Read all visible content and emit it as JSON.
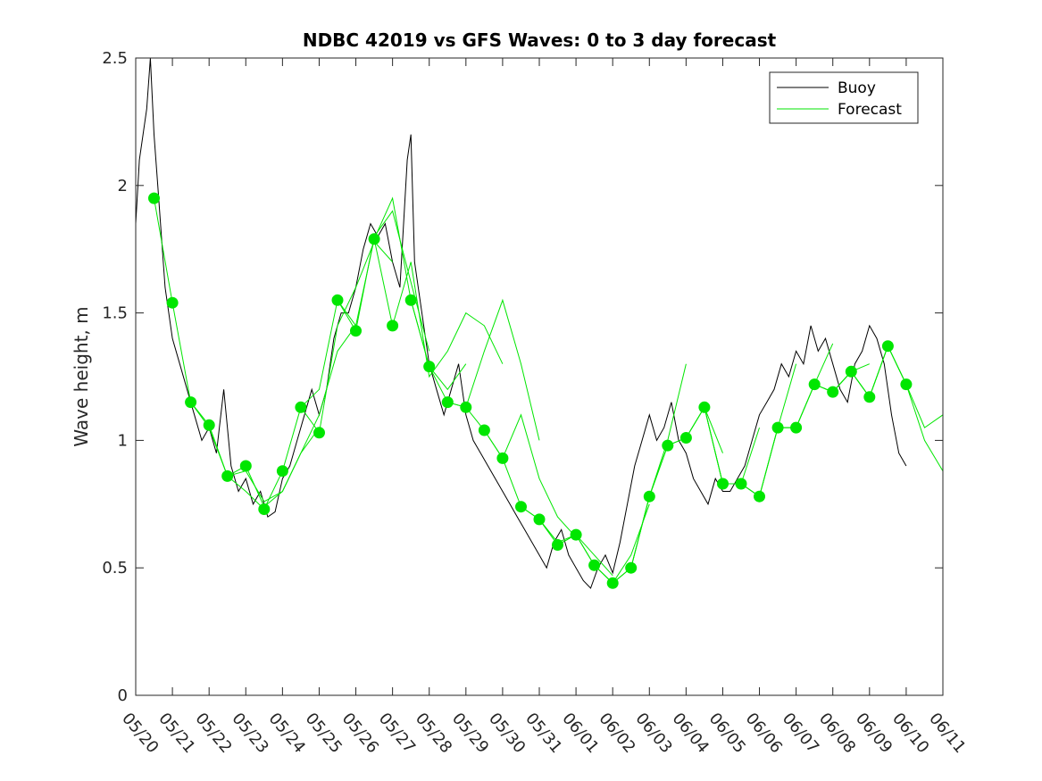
{
  "chart_data": {
    "type": "line",
    "title": "NDBC 42019 vs GFS Waves: 0 to 3 day forecast",
    "ylabel": "Wave height, m",
    "xlabel": "",
    "x_range_days": [
      0,
      22
    ],
    "ylim": [
      0,
      2.5
    ],
    "yticks": [
      "0",
      "0.5",
      "1",
      "1.5",
      "2",
      "2.5"
    ],
    "xtick_labels": [
      "05/20",
      "05/21",
      "05/22",
      "05/23",
      "05/24",
      "05/25",
      "05/26",
      "05/27",
      "05/28",
      "05/29",
      "05/30",
      "05/31",
      "06/01",
      "06/02",
      "06/03",
      "06/04",
      "06/05",
      "06/06",
      "06/07",
      "06/08",
      "06/09",
      "06/10",
      "06/11"
    ],
    "legend": {
      "placement": "top-right",
      "entries": [
        "Buoy",
        "Forecast"
      ]
    },
    "colors": {
      "buoy": "#000000",
      "forecast": "#00e600",
      "marker": "#00e600",
      "axes": "#262626"
    },
    "series": [
      {
        "name": "Buoy",
        "x": [
          0,
          0.1,
          0.2,
          0.3,
          0.4,
          0.5,
          0.6,
          0.7,
          0.8,
          0.9,
          1.0,
          1.2,
          1.4,
          1.6,
          1.8,
          2.0,
          2.2,
          2.4,
          2.6,
          2.8,
          3.0,
          3.2,
          3.4,
          3.6,
          3.8,
          4.0,
          4.2,
          4.4,
          4.6,
          4.8,
          5.0,
          5.2,
          5.4,
          5.6,
          5.8,
          6.0,
          6.2,
          6.4,
          6.6,
          6.8,
          7.0,
          7.2,
          7.4,
          7.5,
          7.6,
          7.8,
          8.0,
          8.2,
          8.4,
          8.6,
          8.8,
          9.0,
          9.2,
          9.4,
          9.6,
          9.8,
          10.0,
          10.2,
          10.4,
          10.6,
          10.8,
          11.0,
          11.2,
          11.4,
          11.6,
          11.8,
          12.0,
          12.2,
          12.4,
          12.6,
          12.8,
          13.0,
          13.2,
          13.4,
          13.6,
          13.8,
          14.0,
          14.2,
          14.4,
          14.6,
          14.8,
          15.0,
          15.2,
          15.4,
          15.6,
          15.8,
          16.0,
          16.2,
          16.4,
          16.6,
          16.8,
          17.0,
          17.2,
          17.4,
          17.6,
          17.8,
          18.0,
          18.2,
          18.4,
          18.6,
          18.8,
          19.0,
          19.2,
          19.4,
          19.6,
          19.8,
          20.0,
          20.2,
          20.4,
          20.6,
          20.8,
          21.0
        ],
        "values": [
          1.85,
          2.1,
          2.2,
          2.3,
          2.5,
          2.2,
          2.0,
          1.8,
          1.6,
          1.5,
          1.4,
          1.3,
          1.2,
          1.1,
          1.0,
          1.05,
          0.95,
          1.2,
          0.9,
          0.8,
          0.85,
          0.75,
          0.8,
          0.7,
          0.72,
          0.85,
          0.9,
          1.0,
          1.1,
          1.2,
          1.1,
          1.2,
          1.4,
          1.5,
          1.5,
          1.6,
          1.75,
          1.85,
          1.8,
          1.85,
          1.7,
          1.6,
          2.1,
          2.2,
          1.7,
          1.5,
          1.3,
          1.2,
          1.1,
          1.2,
          1.3,
          1.1,
          1.0,
          0.95,
          0.9,
          0.85,
          0.8,
          0.75,
          0.7,
          0.65,
          0.6,
          0.55,
          0.5,
          0.6,
          0.65,
          0.55,
          0.5,
          0.45,
          0.42,
          0.5,
          0.55,
          0.48,
          0.6,
          0.75,
          0.9,
          1.0,
          1.1,
          1.0,
          1.05,
          1.15,
          1.0,
          0.95,
          0.85,
          0.8,
          0.75,
          0.85,
          0.8,
          0.8,
          0.85,
          0.9,
          1.0,
          1.1,
          1.15,
          1.2,
          1.3,
          1.25,
          1.35,
          1.3,
          1.45,
          1.35,
          1.4,
          1.3,
          1.2,
          1.15,
          1.3,
          1.35,
          1.45,
          1.4,
          1.3,
          1.1,
          0.95,
          0.9
        ]
      },
      {
        "name": "Forecast",
        "runs": [
          {
            "x": [
              0.5,
              1.0,
              1.5,
              2.0,
              2.5,
              3.0,
              3.5
            ],
            "values": [
              1.95,
              1.54,
              1.15,
              1.06,
              0.86,
              0.8,
              0.73
            ]
          },
          {
            "x": [
              1.5,
              2.0,
              2.5,
              3.0,
              3.5,
              4.0,
              4.5,
              5.0
            ],
            "values": [
              1.15,
              1.05,
              0.86,
              0.88,
              0.76,
              0.8,
              0.95,
              1.05
            ]
          },
          {
            "x": [
              2.5,
              3.0,
              3.5,
              4.0,
              4.5,
              5.0,
              5.5,
              6.0
            ],
            "values": [
              0.86,
              0.9,
              0.74,
              0.8,
              0.95,
              1.1,
              1.35,
              1.45
            ]
          },
          {
            "x": [
              3.5,
              4.0,
              4.5,
              5.0,
              5.5,
              6.0,
              6.5,
              7.0
            ],
            "values": [
              0.73,
              0.88,
              1.13,
              1.03,
              1.45,
              1.6,
              1.78,
              1.7
            ]
          },
          {
            "x": [
              4.5,
              5.0,
              5.5,
              6.0,
              6.5,
              7.0,
              7.5,
              8.0
            ],
            "values": [
              1.13,
              1.2,
              1.55,
              1.43,
              1.8,
              1.9,
              1.62,
              1.35
            ]
          },
          {
            "x": [
              5.5,
              6.0,
              6.5,
              7.0,
              7.5,
              8.0,
              8.5,
              9.0
            ],
            "values": [
              1.55,
              1.45,
              1.79,
              1.95,
              1.55,
              1.29,
              1.2,
              1.3
            ]
          },
          {
            "x": [
              6.5,
              7.0,
              7.5,
              8.0,
              8.5,
              9.0,
              9.5,
              10.0
            ],
            "values": [
              1.79,
              1.45,
              1.7,
              1.25,
              1.35,
              1.5,
              1.45,
              1.3
            ]
          },
          {
            "x": [
              7.5,
              8.0,
              8.5,
              9.0,
              9.5,
              10.0,
              10.5,
              11.0
            ],
            "values": [
              1.55,
              1.29,
              1.15,
              1.13,
              1.35,
              1.55,
              1.3,
              1.0
            ]
          },
          {
            "x": [
              8.5,
              9.0,
              9.5,
              10.0,
              10.5,
              11.0,
              11.5,
              12.0
            ],
            "values": [
              1.15,
              1.13,
              1.04,
              0.93,
              1.1,
              0.85,
              0.7,
              0.62
            ]
          },
          {
            "x": [
              9.5,
              10.0,
              10.5,
              11.0,
              11.5,
              12.0,
              12.5,
              13.0
            ],
            "values": [
              1.04,
              0.93,
              0.74,
              0.69,
              0.6,
              0.63,
              0.55,
              0.47
            ]
          },
          {
            "x": [
              10.5,
              11.0,
              11.5,
              12.0,
              12.5,
              13.0,
              13.5,
              14.0
            ],
            "values": [
              0.74,
              0.69,
              0.59,
              0.63,
              0.51,
              0.44,
              0.55,
              0.75
            ]
          },
          {
            "x": [
              11.5,
              12.0,
              12.5,
              13.0,
              13.5,
              14.0,
              14.5,
              15.0
            ],
            "values": [
              0.59,
              0.63,
              0.51,
              0.44,
              0.5,
              0.78,
              1.0,
              1.3
            ]
          },
          {
            "x": [
              12.5,
              13.0,
              13.5,
              14.0,
              14.5,
              15.0,
              15.5,
              16.0
            ],
            "values": [
              0.51,
              0.44,
              0.5,
              0.78,
              0.98,
              1.01,
              1.13,
              0.95
            ]
          },
          {
            "x": [
              13.5,
              14.0,
              14.5,
              15.0,
              15.5,
              16.0,
              16.5,
              17.0
            ],
            "values": [
              0.5,
              0.78,
              0.98,
              1.01,
              1.13,
              0.83,
              0.83,
              1.05
            ]
          },
          {
            "x": [
              14.5,
              15.0,
              15.5,
              16.0,
              16.5,
              17.0,
              17.5,
              18.0
            ],
            "values": [
              0.98,
              1.01,
              1.13,
              0.83,
              0.83,
              0.78,
              1.05,
              1.3
            ]
          },
          {
            "x": [
              15.5,
              16.0,
              16.5,
              17.0,
              17.5,
              18.0,
              18.5,
              19.0
            ],
            "values": [
              1.13,
              0.83,
              0.83,
              0.78,
              1.05,
              1.05,
              1.22,
              1.38
            ]
          },
          {
            "x": [
              16.5,
              17.0,
              17.5,
              18.0,
              18.5,
              19.0,
              19.5,
              20.0
            ],
            "values": [
              0.83,
              0.78,
              1.05,
              1.05,
              1.22,
              1.19,
              1.27,
              1.3
            ]
          },
          {
            "x": [
              17.5,
              18.0,
              18.5,
              19.0,
              19.5,
              20.0,
              20.5,
              21.0
            ],
            "values": [
              1.05,
              1.05,
              1.22,
              1.19,
              1.27,
              1.17,
              1.37,
              1.22
            ]
          },
          {
            "x": [
              18.5,
              19.0,
              19.5,
              20.0,
              20.5,
              21.0,
              21.5,
              22.0
            ],
            "values": [
              1.22,
              1.19,
              1.27,
              1.17,
              1.37,
              1.22,
              1.0,
              0.88
            ]
          },
          {
            "x": [
              19.5,
              20.0,
              20.5,
              21.0,
              21.5,
              22.0
            ],
            "values": [
              1.27,
              1.17,
              1.37,
              1.22,
              1.05,
              1.1
            ]
          }
        ]
      },
      {
        "name": "Forecast analysis points",
        "x": [
          0.5,
          1.0,
          1.5,
          2.0,
          2.5,
          3.0,
          3.5,
          4.0,
          4.5,
          5.0,
          5.5,
          6.0,
          6.5,
          7.0,
          7.5,
          8.0,
          8.5,
          9.0,
          9.5,
          10.0,
          10.5,
          11.0,
          11.5,
          12.0,
          12.5,
          13.0,
          13.5,
          14.0,
          14.5,
          15.0,
          15.5,
          16.0,
          16.5,
          17.0,
          17.5,
          18.0,
          18.5,
          19.0,
          19.5,
          20.0,
          20.5,
          21.0
        ],
        "values": [
          1.95,
          1.54,
          1.15,
          1.06,
          0.86,
          0.9,
          0.73,
          0.88,
          1.13,
          1.03,
          1.55,
          1.43,
          1.79,
          1.45,
          1.55,
          1.29,
          1.15,
          1.13,
          1.04,
          0.93,
          0.74,
          0.69,
          0.59,
          0.63,
          0.51,
          0.44,
          0.5,
          0.78,
          0.98,
          1.01,
          1.13,
          0.83,
          0.83,
          0.78,
          1.05,
          1.05,
          1.22,
          1.19,
          1.27,
          1.17,
          1.37,
          1.22
        ]
      }
    ]
  }
}
